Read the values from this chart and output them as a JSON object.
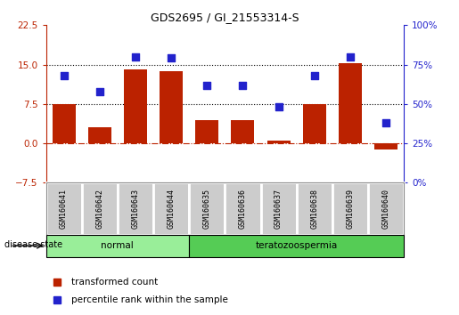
{
  "title": "GDS2695 / GI_21553314-S",
  "samples": [
    "GSM160641",
    "GSM160642",
    "GSM160643",
    "GSM160644",
    "GSM160635",
    "GSM160636",
    "GSM160637",
    "GSM160638",
    "GSM160639",
    "GSM160640"
  ],
  "transformed_count": [
    7.5,
    3.0,
    14.0,
    13.8,
    4.5,
    4.5,
    0.5,
    7.5,
    15.2,
    -1.2
  ],
  "percentile_rank": [
    68,
    58,
    80,
    79,
    62,
    62,
    48,
    68,
    80,
    38
  ],
  "bar_color": "#bb2200",
  "dot_color": "#2222cc",
  "left_ylim": [
    -7.5,
    22.5
  ],
  "right_ylim": [
    0,
    100
  ],
  "left_yticks": [
    -7.5,
    0,
    7.5,
    15,
    22.5
  ],
  "right_yticks": [
    0,
    25,
    50,
    75,
    100
  ],
  "hline_values": [
    7.5,
    15.0
  ],
  "zero_line_value": 0,
  "groups": [
    {
      "label": "normal",
      "start": 0,
      "end": 4,
      "color": "#99ee99"
    },
    {
      "label": "teratozoospermia",
      "start": 4,
      "end": 10,
      "color": "#55cc55"
    }
  ],
  "sample_box_color": "#cccccc",
  "sample_box_edge": "#ffffff",
  "disease_state_label": "disease state",
  "legend_items": [
    {
      "label": "transformed count",
      "color": "#bb2200",
      "marker": "s"
    },
    {
      "label": "percentile rank within the sample",
      "color": "#2222cc",
      "marker": "s"
    }
  ],
  "bar_width": 0.65,
  "dot_size": 40,
  "figsize": [
    5.15,
    3.54
  ],
  "dpi": 100
}
